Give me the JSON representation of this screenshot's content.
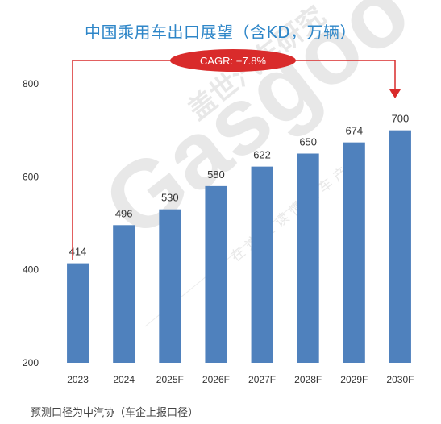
{
  "title": "中国乘用车出口展望（含KD，万辆）",
  "footnote": "预测口径为中汽协（车企上报口径）",
  "annotation": {
    "cagr_label": "CAGR: +7.8%",
    "badge_color": "#d92b2b",
    "arrow_color": "#d92b2b"
  },
  "watermark": {
    "brand": "Gasgoo",
    "cn_name": "盖世汽车研究",
    "slogan": "在这里读懂汽车产业"
  },
  "colors": {
    "bar": "#4f81bd",
    "title": "#2e86c8",
    "axis_text": "#333333"
  },
  "chart_data": {
    "type": "bar",
    "title": "中国乘用车出口展望（含KD，万辆）",
    "categories": [
      "2023",
      "2024",
      "2025F",
      "2026F",
      "2027F",
      "2028F",
      "2029F",
      "2030F"
    ],
    "values": [
      414,
      496,
      530,
      580,
      622,
      650,
      674,
      700
    ],
    "data_labels": [
      "414",
      "496",
      "530",
      "580",
      "622",
      "650",
      "674",
      "700"
    ],
    "ylim": [
      200,
      800
    ],
    "yticks": [
      "200",
      "400",
      "600",
      "800"
    ],
    "xlabel": "",
    "ylabel": "",
    "grid": false,
    "legend": "none"
  }
}
